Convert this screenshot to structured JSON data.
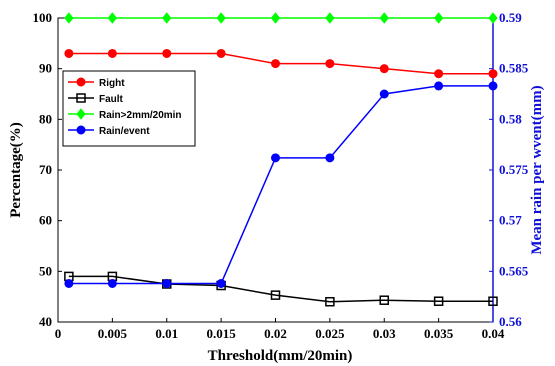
{
  "chart_data": {
    "type": "line",
    "xlabel": "Threshold(mm/20min)",
    "ylabel_left": "Percentage(%)",
    "ylabel_right": "Mean rain per wvent(mm)",
    "x": [
      0.001,
      0.005,
      0.01,
      0.015,
      0.02,
      0.025,
      0.03,
      0.035,
      0.04
    ],
    "x_tick_labels": [
      "0",
      "0.005",
      "0.01",
      "0.015",
      "0.02",
      "0.025",
      "0.03",
      "0.035",
      "0.04"
    ],
    "xlim": [
      0,
      0.04
    ],
    "ylim_left": [
      40,
      100
    ],
    "y_ticks_left": [
      "40",
      "50",
      "60",
      "70",
      "80",
      "90",
      "100"
    ],
    "ylim_right": [
      0.56,
      0.59
    ],
    "y_ticks_right": [
      "0.56",
      "0.565",
      "0.57",
      "0.575",
      "0.58",
      "0.585",
      "0.59"
    ],
    "legend_placement": "upper-left",
    "grid": false,
    "series": [
      {
        "name": "Right",
        "axis": "left",
        "color": "#ff0000",
        "marker": "circle",
        "values": [
          93,
          93,
          93,
          93,
          91,
          91,
          90,
          89,
          89
        ]
      },
      {
        "name": "Fault",
        "axis": "left",
        "color": "#000000",
        "marker": "square",
        "values": [
          49,
          49,
          47.5,
          47.2,
          45.3,
          44,
          44.3,
          44.1,
          44.1
        ]
      },
      {
        "name": "Rain>2mm/20min",
        "axis": "left",
        "color": "#00ff00",
        "marker": "diamond",
        "values": [
          100,
          100,
          100,
          100,
          100,
          100,
          100,
          100,
          100
        ]
      },
      {
        "name": "Rain/event",
        "axis": "right",
        "color": "#0000ff",
        "marker": "circle",
        "values": [
          0.5638,
          0.5638,
          0.5638,
          0.5638,
          0.5762,
          0.5762,
          0.5825,
          0.5833,
          0.5833
        ]
      }
    ]
  }
}
